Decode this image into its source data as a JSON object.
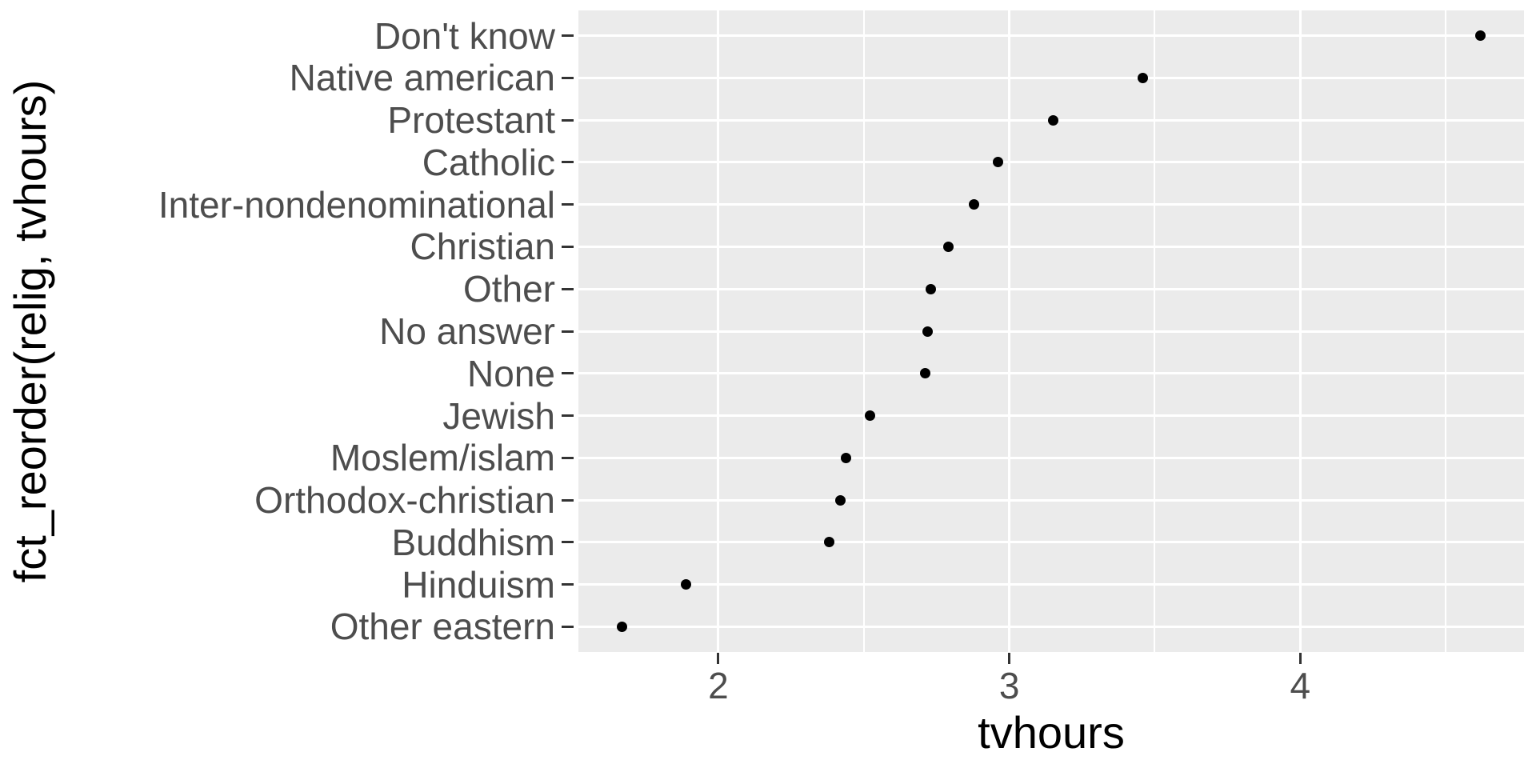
{
  "chart_data": {
    "type": "scatter",
    "title": "",
    "xlabel": "tvhours",
    "ylabel": "fct_reorder(relig, tvhours)",
    "categories": [
      "Don't know",
      "Native american",
      "Protestant",
      "Catholic",
      "Inter-nondenominational",
      "Christian",
      "Other",
      "No answer",
      "None",
      "Jewish",
      "Moslem/islam",
      "Orthodox-christian",
      "Buddhism",
      "Hinduism",
      "Other eastern"
    ],
    "values": [
      4.62,
      3.46,
      3.15,
      2.96,
      2.88,
      2.79,
      2.73,
      2.72,
      2.71,
      2.52,
      2.44,
      2.42,
      2.38,
      1.89,
      1.67
    ],
    "x_tick_labels": [
      "2",
      "3",
      "4"
    ],
    "x_major_ticks": [
      2,
      3,
      4
    ],
    "x_minor_gridlines": [
      2.5,
      3.5,
      4.5
    ],
    "xlim": [
      1.519,
      4.769
    ],
    "grid": "major-xy-white, minor-x-white, on-gray-panel",
    "legend": "none",
    "colors": {
      "panel_background": "#EBEBEB",
      "gridline": "#FFFFFF",
      "point": "#000000",
      "tick_label": "#4D4D4D",
      "tick_mark": "#333333",
      "axis_title": "#000000",
      "figure_background": "#FFFFFF"
    }
  }
}
